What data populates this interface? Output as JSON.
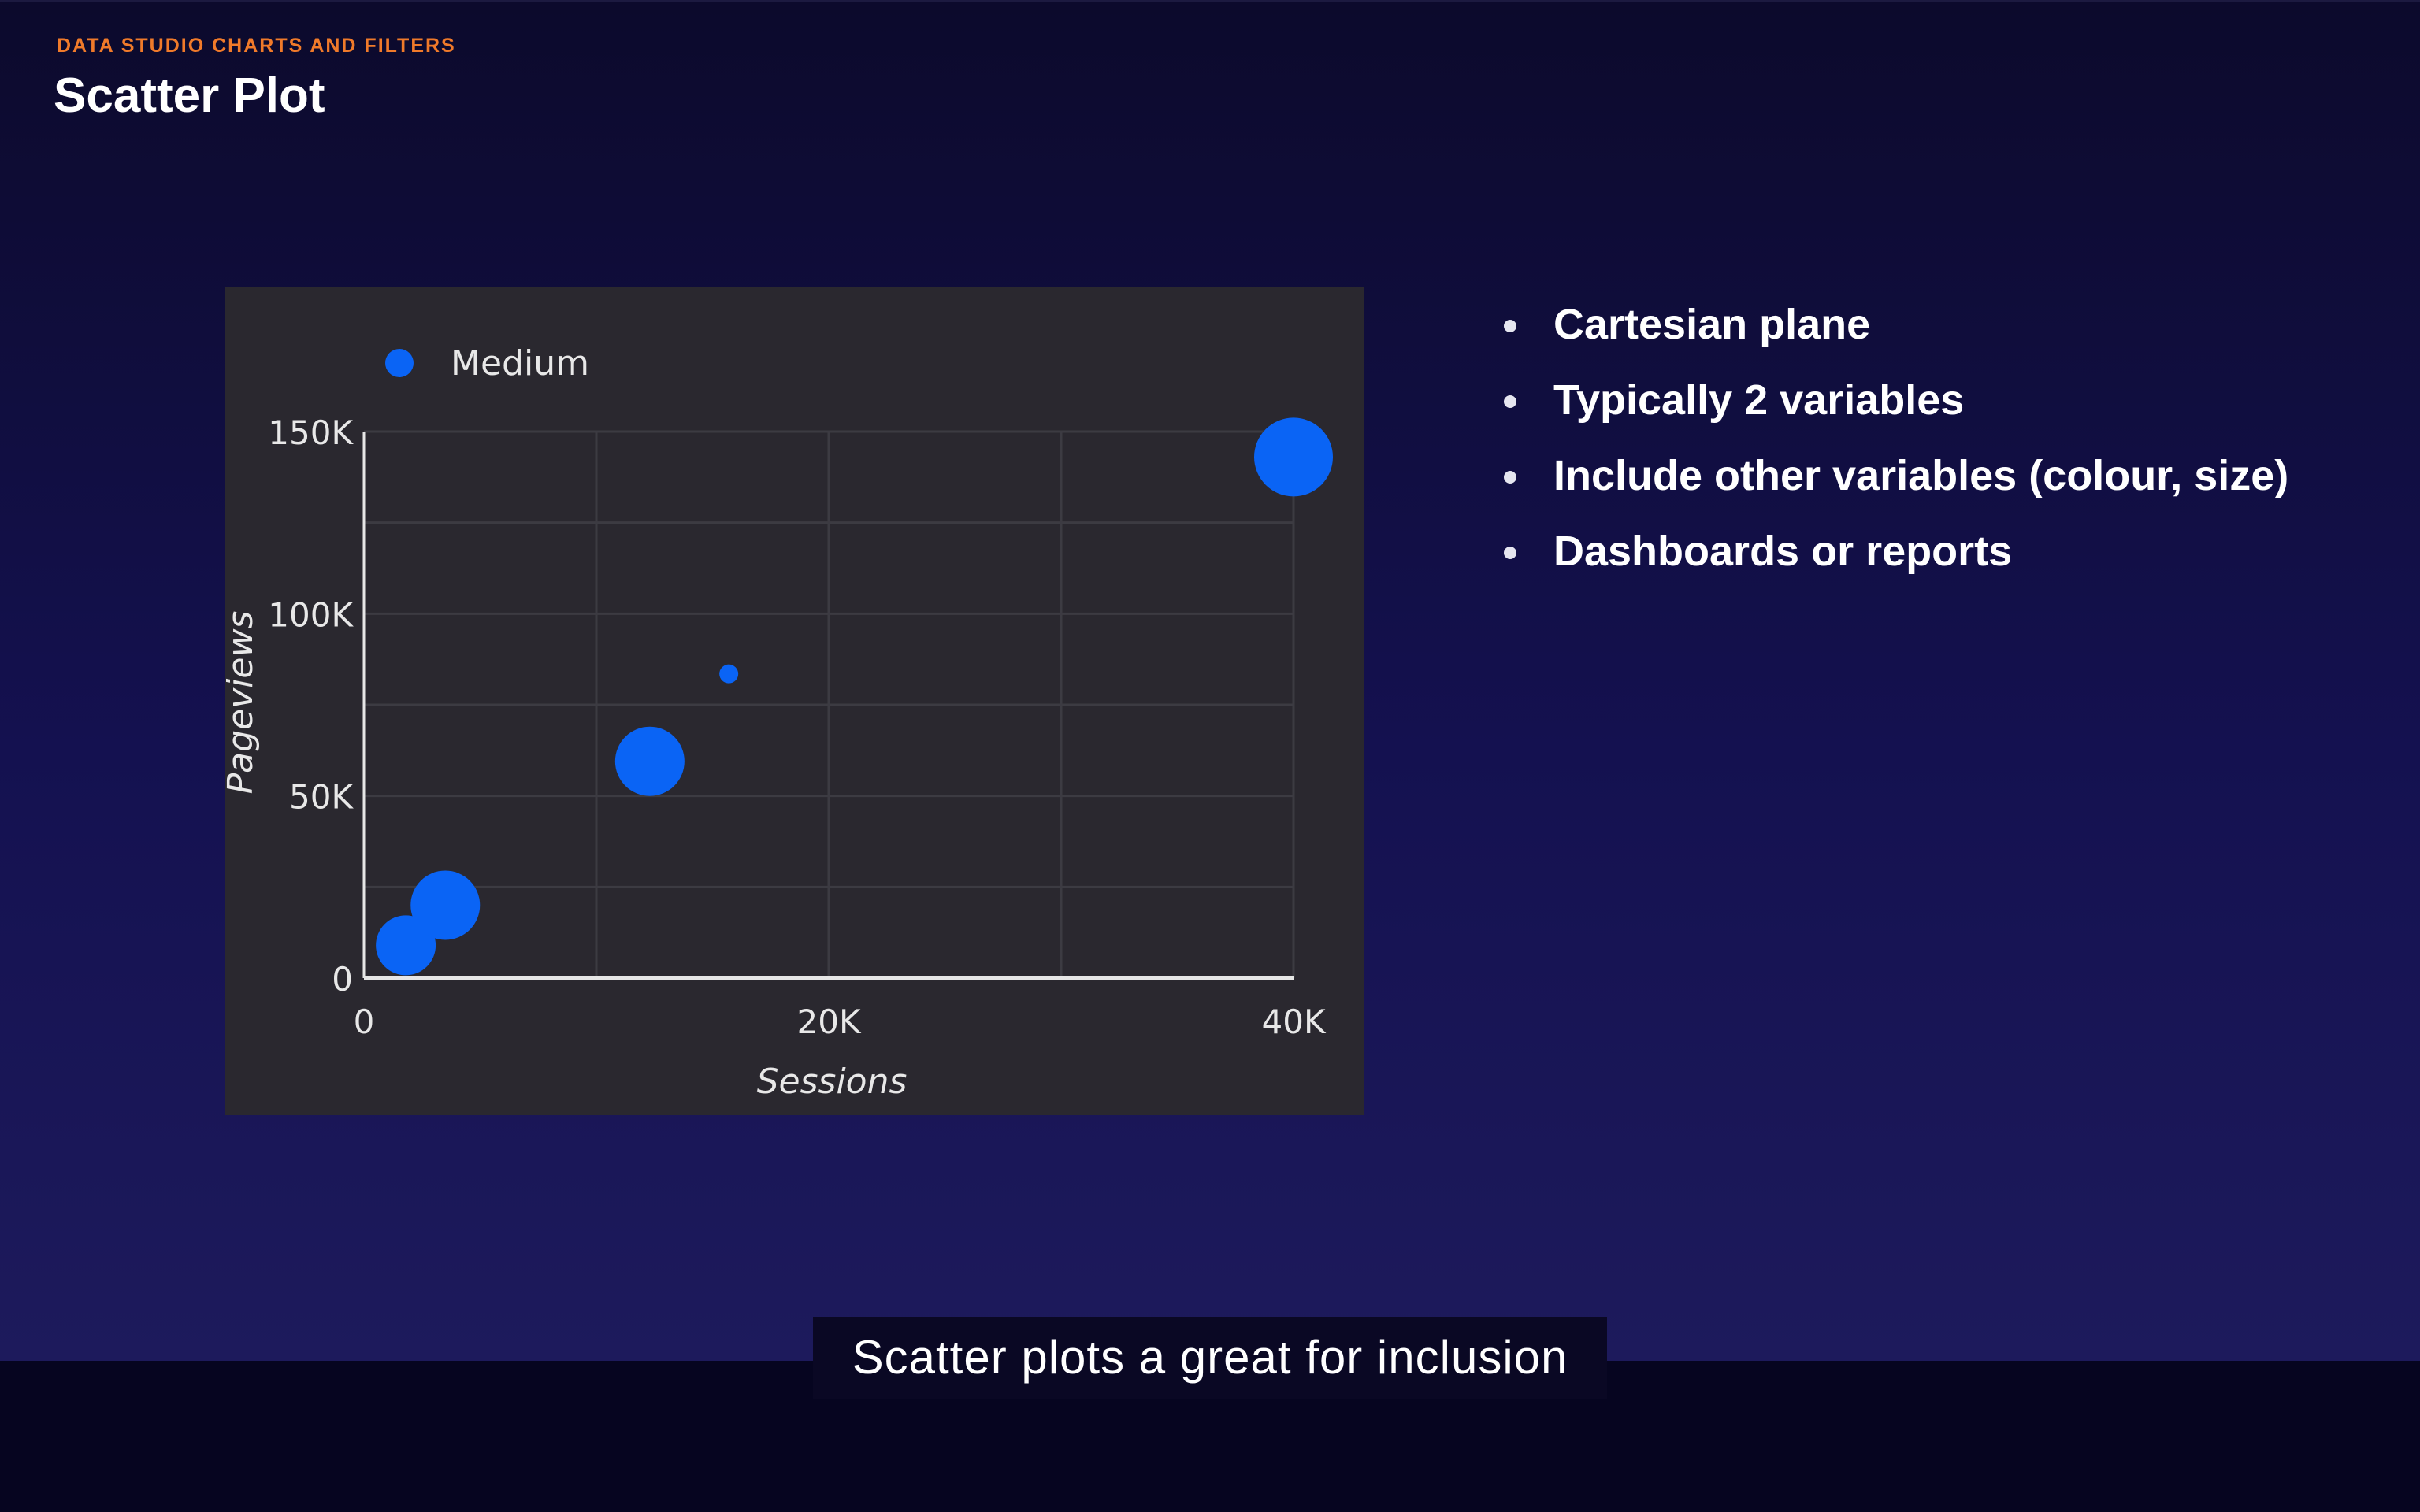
{
  "slide": {
    "eyebrow": "DATA STUDIO CHARTS AND FILTERS",
    "title": "Scatter Plot",
    "bullets": [
      "Cartesian plane",
      "Typically 2 variables",
      "Include other variables (colour, size)",
      "Dashboards or reports"
    ]
  },
  "caption": {
    "text": "Scatter plots a great for inclusion"
  },
  "colors": {
    "accent": "#f07a2a",
    "bubble": "#0a64f5",
    "chart_background": "#2a282f"
  },
  "chart_data": {
    "type": "scatter",
    "legend": [
      "Medium"
    ],
    "legend_position": "top-left",
    "xlabel": "Sessions",
    "ylabel": "Pageviews",
    "xlim": [
      0,
      40000
    ],
    "ylim": [
      0,
      150000
    ],
    "x_ticks": [
      {
        "value": 0,
        "label": "0"
      },
      {
        "value": 20000,
        "label": "20K"
      },
      {
        "value": 40000,
        "label": "40K"
      }
    ],
    "y_ticks": [
      {
        "value": 0,
        "label": "0"
      },
      {
        "value": 50000,
        "label": "50K"
      },
      {
        "value": 100000,
        "label": "100K"
      },
      {
        "value": 150000,
        "label": "150K"
      }
    ],
    "grid": true,
    "series": [
      {
        "name": "Medium",
        "color": "#0a64f5",
        "points": [
          {
            "x": 1800,
            "y": 9000,
            "size": 0.38
          },
          {
            "x": 3500,
            "y": 20000,
            "size": 0.44
          },
          {
            "x": 12300,
            "y": 59500,
            "size": 0.44
          },
          {
            "x": 15700,
            "y": 83500,
            "size": 0.09
          },
          {
            "x": 40000,
            "y": 143000,
            "size": 0.5
          }
        ]
      }
    ]
  }
}
